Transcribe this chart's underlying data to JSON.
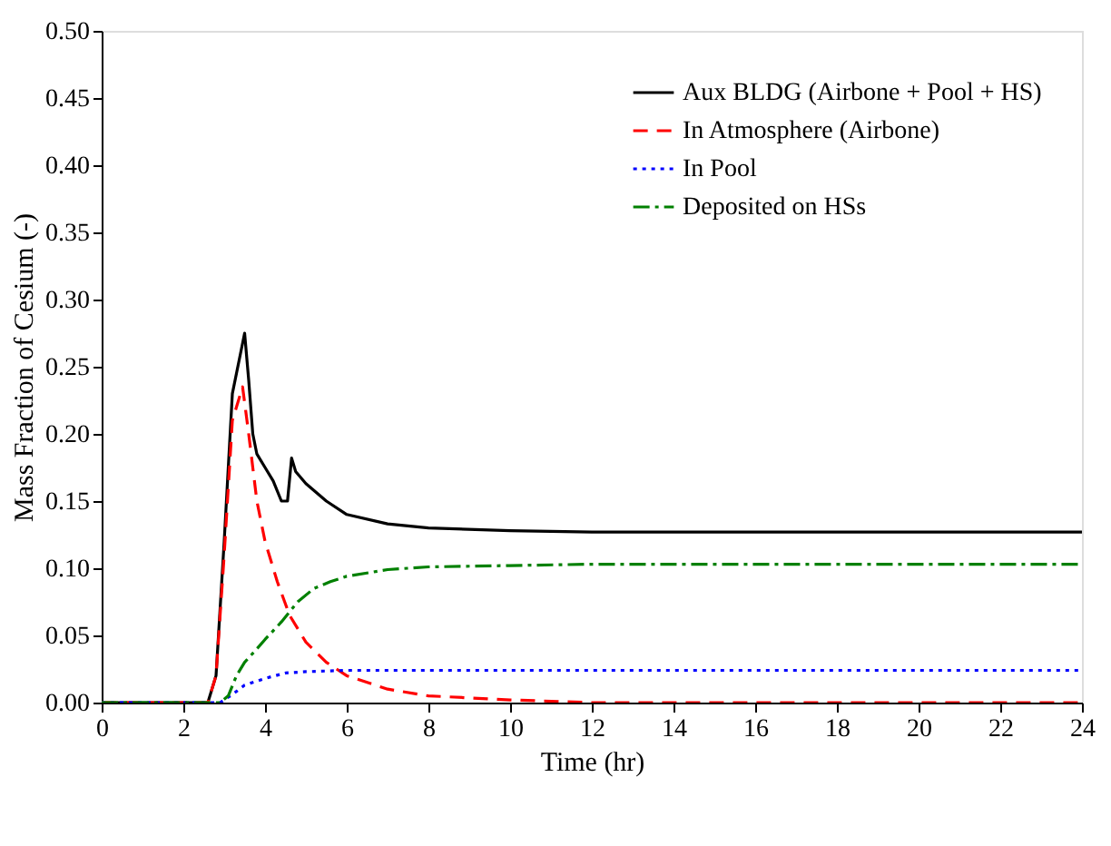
{
  "chart_data": {
    "type": "line",
    "xlabel": "Time (hr)",
    "ylabel": "Mass Fraction of Cesium (-)",
    "xlim": [
      0,
      24
    ],
    "xticks": [
      0,
      2,
      4,
      6,
      8,
      10,
      12,
      14,
      16,
      18,
      20,
      22,
      24
    ],
    "ylim": [
      0,
      0.5
    ],
    "yticks": [
      {
        "value": 0,
        "label": "0.00"
      },
      {
        "value": 0.05,
        "label": "0.05"
      },
      {
        "value": 0.1,
        "label": "0.10"
      },
      {
        "value": 0.15,
        "label": "0.15"
      },
      {
        "value": 0.2,
        "label": "0.20"
      },
      {
        "value": 0.25,
        "label": "0.25"
      },
      {
        "value": 0.3,
        "label": "0.30"
      },
      {
        "value": 0.35,
        "label": "0.35"
      },
      {
        "value": 0.4,
        "label": "0.40"
      },
      {
        "value": 0.45,
        "label": "0.45"
      },
      {
        "value": 0.5,
        "label": "0.50"
      }
    ],
    "grid": false,
    "legend": "top right",
    "marker": "none",
    "series": [
      {
        "name": "Aux BLDG (Airbone + Pool + HS)",
        "color": "#000000",
        "line_style": "solid",
        "x": [
          0,
          2.6,
          2.8,
          3.0,
          3.2,
          3.4,
          3.5,
          3.6,
          3.7,
          3.8,
          4.0,
          4.2,
          4.4,
          4.55,
          4.65,
          4.75,
          5.0,
          5.5,
          6.0,
          7.0,
          8.0,
          10.0,
          12.0,
          16.0,
          24.0
        ],
        "values": [
          0,
          0,
          0.02,
          0.12,
          0.23,
          0.26,
          0.275,
          0.24,
          0.2,
          0.185,
          0.175,
          0.165,
          0.15,
          0.15,
          0.182,
          0.172,
          0.163,
          0.15,
          0.14,
          0.133,
          0.13,
          0.128,
          0.127,
          0.127,
          0.127
        ]
      },
      {
        "name": "In Atmosphere (Airbone)",
        "color": "#ff0000",
        "line_style": "dashed",
        "x": [
          0,
          2.6,
          2.8,
          3.0,
          3.2,
          3.45,
          3.6,
          3.8,
          4.0,
          4.3,
          4.6,
          5.0,
          5.5,
          6.0,
          7.0,
          8.0,
          10.0,
          12.0,
          24.0
        ],
        "values": [
          0,
          0,
          0.02,
          0.11,
          0.21,
          0.235,
          0.2,
          0.15,
          0.12,
          0.09,
          0.065,
          0.045,
          0.03,
          0.02,
          0.01,
          0.005,
          0.002,
          0,
          0
        ]
      },
      {
        "name": "In Pool",
        "color": "#0000ff",
        "line_style": "dotted",
        "x": [
          0,
          2.9,
          3.2,
          3.5,
          4.0,
          4.5,
          5.0,
          6.0,
          24.0
        ],
        "values": [
          0,
          0,
          0.006,
          0.013,
          0.018,
          0.022,
          0.023,
          0.024,
          0.024
        ]
      },
      {
        "name": "Deposited on HSs",
        "color": "#008000",
        "line_style": "dashdot",
        "x": [
          0,
          2.9,
          3.1,
          3.3,
          3.5,
          3.8,
          4.0,
          4.4,
          4.8,
          5.2,
          5.6,
          6.0,
          7.0,
          8.0,
          10.0,
          12.0,
          24.0
        ],
        "values": [
          0,
          0,
          0.005,
          0.02,
          0.03,
          0.04,
          0.047,
          0.06,
          0.075,
          0.085,
          0.09,
          0.094,
          0.099,
          0.101,
          0.102,
          0.103,
          0.103
        ]
      }
    ]
  }
}
